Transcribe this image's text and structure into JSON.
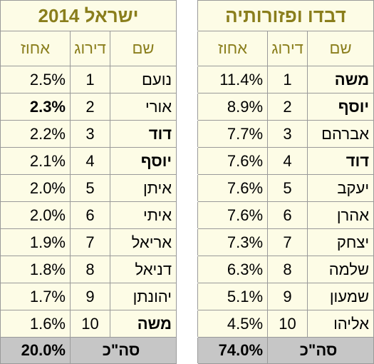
{
  "israel": {
    "title": "ישראל",
    "year": "2014",
    "headers": {
      "pct": "אחוז",
      "rank": "דירוג",
      "name": "שם"
    },
    "rows": [
      {
        "pct": "2.5%",
        "rank": "1",
        "name": "נועם"
      },
      {
        "pct": "2.3%",
        "rank": "2",
        "name": "אורי"
      },
      {
        "pct": "2.2%",
        "rank": "3",
        "name": "דוד"
      },
      {
        "pct": "2.1%",
        "rank": "4",
        "name": "יוסף"
      },
      {
        "pct": "2.0%",
        "rank": "5",
        "name": "איתן"
      },
      {
        "pct": "2.0%",
        "rank": "6",
        "name": "איתי"
      },
      {
        "pct": "1.9%",
        "rank": "7",
        "name": "אריאל"
      },
      {
        "pct": "1.8%",
        "rank": "8",
        "name": "דניאל"
      },
      {
        "pct": "1.7%",
        "rank": "9",
        "name": "יהונתן"
      },
      {
        "pct": "1.6%",
        "rank": "10",
        "name": "משה"
      }
    ],
    "total": {
      "pct": "20.0%",
      "label": "סה\"כ"
    }
  },
  "diaspora": {
    "title": "דבדו ופזורותיה",
    "headers": {
      "pct": "אחוז",
      "rank": "דירוג",
      "name": "שם"
    },
    "rows": [
      {
        "pct": "11.4%",
        "rank": "1",
        "name": "משה"
      },
      {
        "pct": "8.9%",
        "rank": "2",
        "name": "יוסף"
      },
      {
        "pct": "7.7%",
        "rank": "3",
        "name": "אברהם"
      },
      {
        "pct": "7.6%",
        "rank": "4",
        "name": "דוד"
      },
      {
        "pct": "7.6%",
        "rank": "5",
        "name": "יעקב"
      },
      {
        "pct": "7.6%",
        "rank": "6",
        "name": "אהרן"
      },
      {
        "pct": "7.3%",
        "rank": "7",
        "name": "יצחק"
      },
      {
        "pct": "6.3%",
        "rank": "8",
        "name": "שלמה"
      },
      {
        "pct": "5.1%",
        "rank": "9",
        "name": "שמעון"
      },
      {
        "pct": "4.5%",
        "rank": "10",
        "name": "אליהו"
      }
    ],
    "total": {
      "pct": "74.0%",
      "label": "סה\"כ"
    }
  },
  "colors": {
    "title": "#8a7e1c",
    "highlight": "#9c8f1e",
    "cell_bg": "#fdfce6",
    "total_bg": "#c6c6c6"
  }
}
